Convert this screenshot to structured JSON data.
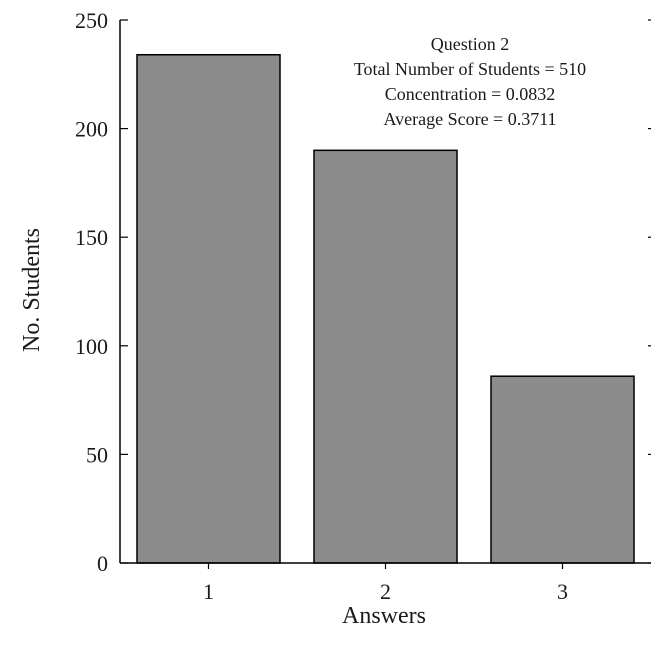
{
  "chart_data": {
    "type": "bar",
    "categories": [
      "1",
      "2",
      "3"
    ],
    "values": [
      234,
      190,
      86
    ],
    "xlabel": "Answers",
    "ylabel": "No. Students",
    "ylim": [
      0,
      250
    ],
    "yticks": [
      0,
      50,
      100,
      150,
      200,
      250
    ],
    "grid": false,
    "annotations": [
      "Question 2",
      "Total Number of Students = 510",
      "Concentration = 0.0832",
      "Average Score = 0.3711"
    ],
    "bar_color": "#8c8c8c"
  }
}
